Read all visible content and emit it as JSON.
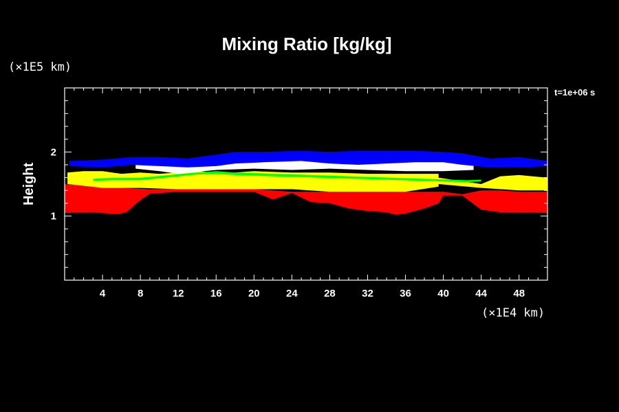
{
  "chart_data": {
    "type": "heatmap",
    "title": "Mixing Ratio [kg/kg]",
    "ylabel": "Height",
    "y_unit_label": "(×1E5 km)",
    "x_unit_label": "(×1E4 km)",
    "time_label": "t=1e+06 s",
    "xlim": [
      0,
      51
    ],
    "ylim": [
      0,
      3
    ],
    "x_ticks": [
      4,
      8,
      12,
      16,
      20,
      24,
      28,
      32,
      36,
      40,
      44,
      48
    ],
    "y_ticks": [
      1,
      2
    ],
    "grid": false,
    "colors": {
      "red": "#ff0000",
      "yellow": "#ffff00",
      "green": "#00ff00",
      "white": "#ffffff",
      "blue": "#0000ff",
      "background": "#000000"
    },
    "layers": [
      {
        "name": "red",
        "top": [
          [
            0,
            1.5
          ],
          [
            3,
            1.46
          ],
          [
            6,
            1.44
          ],
          [
            9,
            1.42
          ],
          [
            12,
            1.42
          ],
          [
            16,
            1.42
          ],
          [
            20,
            1.42
          ],
          [
            24,
            1.38
          ],
          [
            28,
            1.38
          ],
          [
            32,
            1.38
          ],
          [
            36,
            1.38
          ],
          [
            40,
            1.38
          ],
          [
            42,
            1.34
          ],
          [
            44,
            1.4
          ],
          [
            46,
            1.4
          ],
          [
            48,
            1.38
          ],
          [
            51,
            1.38
          ]
        ],
        "bottom": [
          [
            0,
            1.05
          ],
          [
            3,
            1.06
          ],
          [
            5.5,
            1.03
          ],
          [
            6.5,
            1.06
          ],
          [
            8,
            1.25
          ],
          [
            9,
            1.35
          ],
          [
            12,
            1.38
          ],
          [
            16,
            1.38
          ],
          [
            20,
            1.38
          ],
          [
            22,
            1.26
          ],
          [
            24,
            1.36
          ],
          [
            26,
            1.22
          ],
          [
            28,
            1.2
          ],
          [
            30,
            1.12
          ],
          [
            32,
            1.08
          ],
          [
            34,
            1.06
          ],
          [
            35,
            1.02
          ],
          [
            36,
            1.04
          ],
          [
            38,
            1.12
          ],
          [
            39.5,
            1.2
          ],
          [
            40,
            1.32
          ],
          [
            42,
            1.32
          ],
          [
            44,
            1.1
          ],
          [
            46,
            1.06
          ],
          [
            48,
            1.06
          ],
          [
            51,
            1.05
          ]
        ]
      },
      {
        "name": "yellow",
        "top": [
          [
            0.3,
            1.68
          ],
          [
            2,
            1.7
          ],
          [
            4,
            1.7
          ],
          [
            6,
            1.66
          ],
          [
            8,
            1.68
          ],
          [
            10,
            1.66
          ],
          [
            12,
            1.68
          ],
          [
            14,
            1.7
          ],
          [
            16,
            1.68
          ],
          [
            18,
            1.68
          ],
          [
            20,
            1.7
          ],
          [
            24,
            1.68
          ],
          [
            28,
            1.68
          ],
          [
            32,
            1.66
          ],
          [
            36,
            1.66
          ],
          [
            39.5,
            1.66
          ],
          [
            39.5,
            1.6
          ],
          [
            44,
            1.5
          ],
          [
            46,
            1.62
          ],
          [
            48,
            1.64
          ],
          [
            51,
            1.6
          ]
        ],
        "bottom": [
          [
            0.3,
            1.5
          ],
          [
            4,
            1.44
          ],
          [
            8,
            1.44
          ],
          [
            12,
            1.42
          ],
          [
            16,
            1.42
          ],
          [
            20,
            1.42
          ],
          [
            24,
            1.42
          ],
          [
            28,
            1.38
          ],
          [
            32,
            1.38
          ],
          [
            36,
            1.38
          ],
          [
            39.5,
            1.46
          ],
          [
            39.5,
            1.5
          ],
          [
            44,
            1.44
          ],
          [
            48,
            1.4
          ],
          [
            51,
            1.4
          ]
        ]
      },
      {
        "name": "white",
        "top": [
          [
            7.5,
            1.82
          ],
          [
            10,
            1.8
          ],
          [
            11.5,
            1.88
          ],
          [
            14,
            1.82
          ],
          [
            16,
            1.86
          ],
          [
            18,
            1.92
          ],
          [
            21,
            1.98
          ],
          [
            24,
            1.98
          ],
          [
            27,
            2
          ],
          [
            30,
            1.96
          ],
          [
            32,
            1.92
          ],
          [
            35,
            1.98
          ],
          [
            38,
            1.98
          ],
          [
            41,
            1.96
          ],
          [
            43.2,
            1.86
          ]
        ],
        "bottom": [
          [
            7.5,
            1.74
          ],
          [
            10,
            1.7
          ],
          [
            12,
            1.66
          ],
          [
            16,
            1.72
          ],
          [
            20,
            1.74
          ],
          [
            24,
            1.72
          ],
          [
            28,
            1.74
          ],
          [
            32,
            1.72
          ],
          [
            36,
            1.7
          ],
          [
            40,
            1.7
          ],
          [
            43.2,
            1.72
          ]
        ]
      },
      {
        "name": "blue",
        "top": [
          [
            0.5,
            1.86
          ],
          [
            4,
            1.88
          ],
          [
            7,
            1.92
          ],
          [
            10,
            1.92
          ],
          [
            13,
            1.9
          ],
          [
            16,
            1.96
          ],
          [
            18,
            2.0
          ],
          [
            21,
            2.0
          ],
          [
            25,
            2.02
          ],
          [
            28,
            2.0
          ],
          [
            31,
            2.02
          ],
          [
            34,
            2.02
          ],
          [
            37,
            2.02
          ],
          [
            40,
            2.0
          ],
          [
            42,
            1.98
          ],
          [
            45,
            1.9
          ],
          [
            48,
            1.92
          ],
          [
            51,
            1.86
          ]
        ],
        "bottom": [
          [
            0.5,
            1.78
          ],
          [
            4,
            1.76
          ],
          [
            7,
            1.8
          ],
          [
            10,
            1.78
          ],
          [
            13,
            1.76
          ],
          [
            16,
            1.78
          ],
          [
            18,
            1.82
          ],
          [
            21,
            1.84
          ],
          [
            25,
            1.86
          ],
          [
            28,
            1.82
          ],
          [
            31,
            1.8
          ],
          [
            34,
            1.82
          ],
          [
            37,
            1.84
          ],
          [
            40,
            1.84
          ],
          [
            42,
            1.8
          ],
          [
            45,
            1.76
          ],
          [
            48,
            1.76
          ],
          [
            51,
            1.78
          ]
        ]
      },
      {
        "name": "green",
        "top": [
          [
            3,
            1.58
          ],
          [
            5,
            1.6
          ],
          [
            8,
            1.6
          ],
          [
            14,
            1.68
          ],
          [
            16,
            1.7
          ],
          [
            18,
            1.68
          ],
          [
            42.5,
            1.56
          ],
          [
            44,
            1.57
          ]
        ],
        "bottom": [
          [
            3,
            1.55
          ],
          [
            5,
            1.56
          ],
          [
            8,
            1.56
          ],
          [
            14,
            1.65
          ],
          [
            16,
            1.66
          ],
          [
            18,
            1.64
          ],
          [
            42.5,
            1.53
          ],
          [
            44,
            1.54
          ]
        ]
      }
    ]
  }
}
